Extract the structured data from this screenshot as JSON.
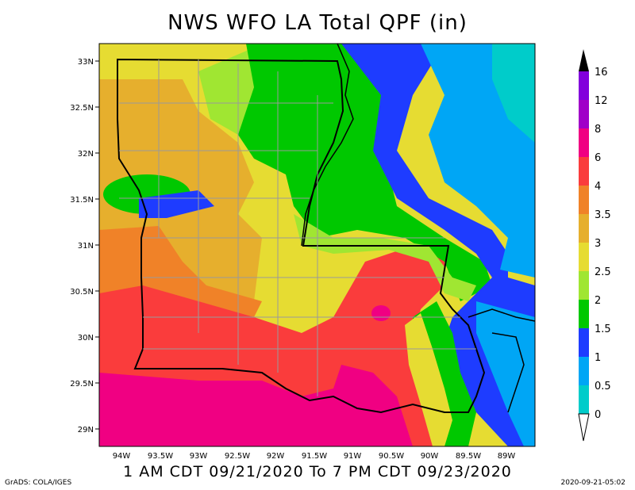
{
  "title": "NWS WFO LA Total QPF (in)",
  "subtitle": "1 AM CDT 09/21/2020 To 7 PM CDT 09/23/2020",
  "credit": "GrADS: COLA/IGES",
  "timestamp": "2020-09-21-05:02",
  "lat_labels": [
    "33N",
    "32.5N",
    "32N",
    "31.5N",
    "31N",
    "30.5N",
    "30N",
    "29.5N",
    "29N"
  ],
  "lon_labels": [
    "94W",
    "93.5W",
    "93W",
    "92.5W",
    "92W",
    "91.5W",
    "91W",
    "90.5W",
    "90W",
    "89.5W",
    "89W"
  ],
  "legend": {
    "labels": [
      "0",
      "0.5",
      "1",
      "1.5",
      "2",
      "2.5",
      "3",
      "3.5",
      "4",
      "6",
      "8",
      "12",
      "16"
    ],
    "colors": [
      "#00ccca",
      "#00a6f5",
      "#1e3cff",
      "#00c800",
      "#a0e632",
      "#e6dc32",
      "#e6af2d",
      "#f08228",
      "#fa3c3c",
      "#f00082",
      "#a000c8",
      "#8200dc"
    ]
  }
}
